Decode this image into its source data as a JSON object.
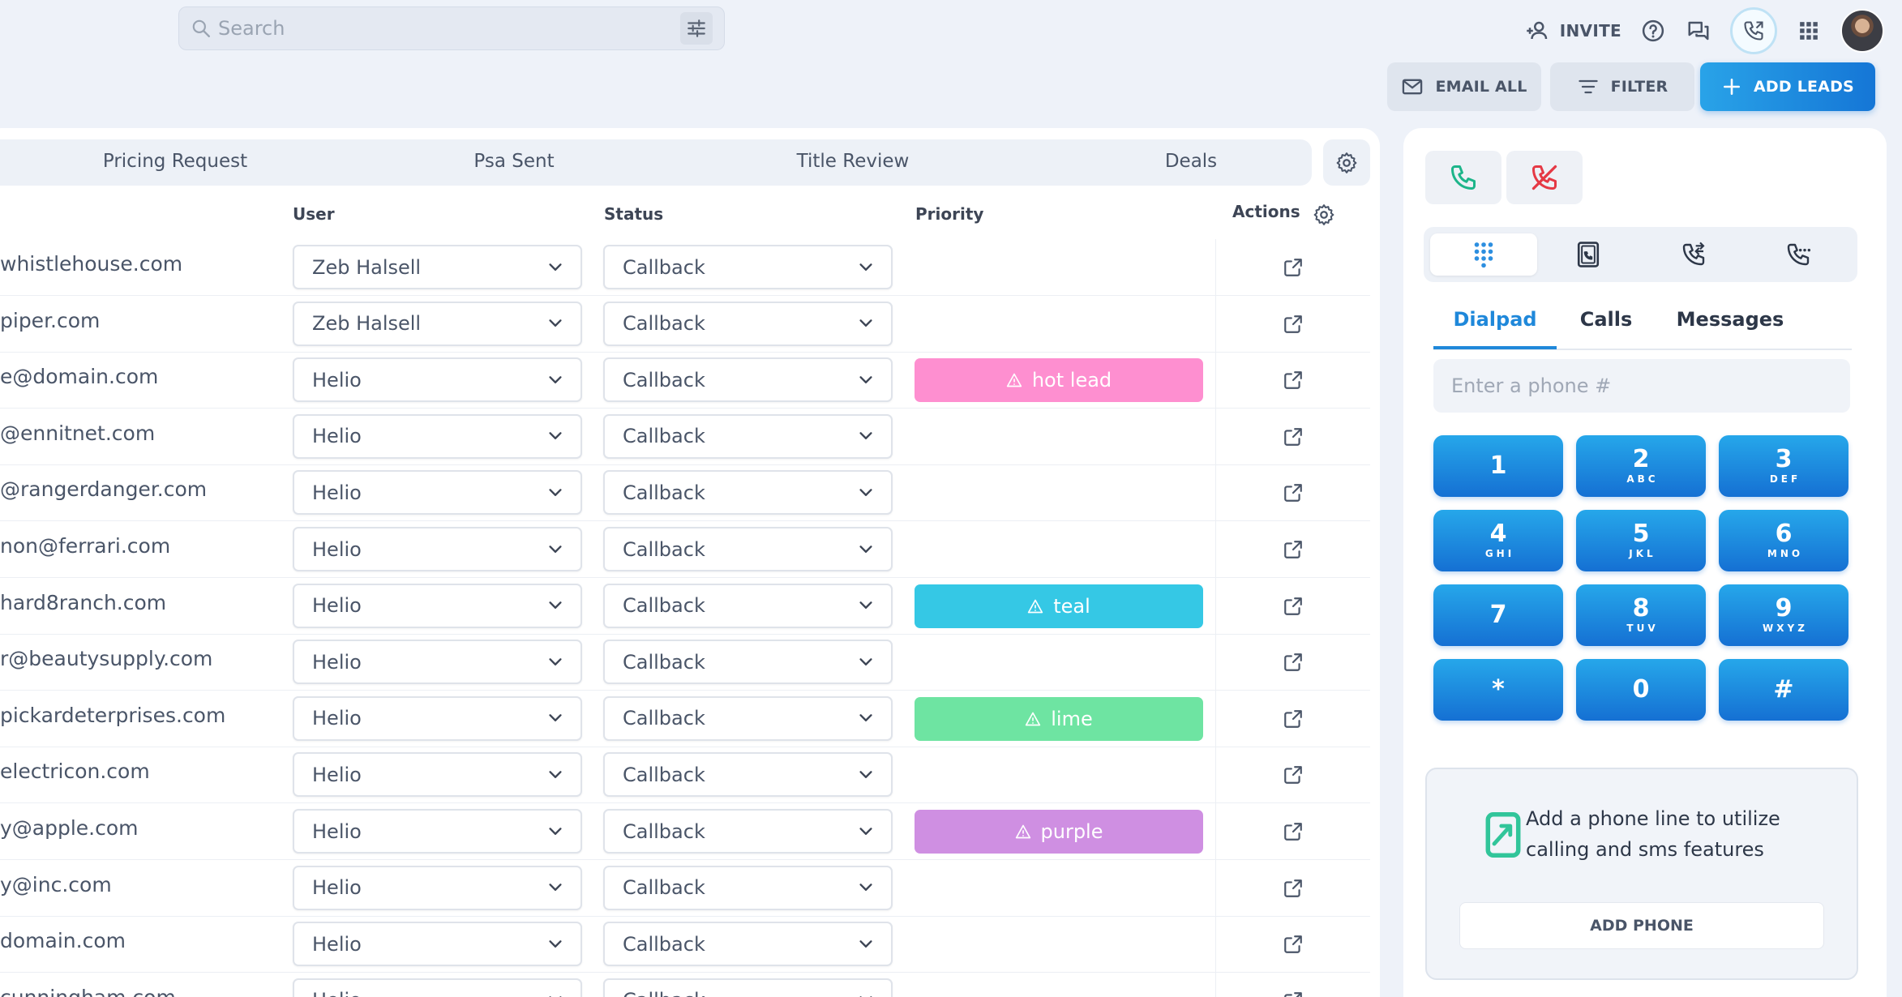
{
  "search": {
    "placeholder": "Search"
  },
  "header": {
    "invite_label": "INVITE"
  },
  "toolbar": {
    "email_all": "EMAIL ALL",
    "filter": "FILTER",
    "add_leads": "ADD LEADS"
  },
  "stages": [
    "Pricing Request",
    "Psa Sent",
    "Title Review",
    "Deals"
  ],
  "columns": {
    "user": "User",
    "status": "Status",
    "priority": "Priority",
    "actions": "Actions"
  },
  "rows": [
    {
      "email": "whistlehouse.com",
      "user": "Zeb Halsell",
      "status": "Callback",
      "priority": ""
    },
    {
      "email": "piper.com",
      "user": "Zeb Halsell",
      "status": "Callback",
      "priority": ""
    },
    {
      "email": "e@domain.com",
      "user": "Helio",
      "status": "Callback",
      "priority": "hot lead"
    },
    {
      "email": "@ennitnet.com",
      "user": "Helio",
      "status": "Callback",
      "priority": ""
    },
    {
      "email": "@rangerdanger.com",
      "user": "Helio",
      "status": "Callback",
      "priority": ""
    },
    {
      "email": "non@ferrari.com",
      "user": "Helio",
      "status": "Callback",
      "priority": ""
    },
    {
      "email": "hard8ranch.com",
      "user": "Helio",
      "status": "Callback",
      "priority": "teal"
    },
    {
      "email": "r@beautysupply.com",
      "user": "Helio",
      "status": "Callback",
      "priority": ""
    },
    {
      "email": "pickardeterprises.com",
      "user": "Helio",
      "status": "Callback",
      "priority": "lime"
    },
    {
      "email": "electricon.com",
      "user": "Helio",
      "status": "Callback",
      "priority": ""
    },
    {
      "email": "y@apple.com",
      "user": "Helio",
      "status": "Callback",
      "priority": "purple"
    },
    {
      "email": "y@inc.com",
      "user": "Helio",
      "status": "Callback",
      "priority": ""
    },
    {
      "email": "domain.com",
      "user": "Helio",
      "status": "Callback",
      "priority": ""
    },
    {
      "email": "cunningham.com",
      "user": "Helio",
      "status": "Callback",
      "priority": ""
    }
  ],
  "priority_colors": {
    "hot lead": "#fe8fd0",
    "teal": "#35c8e5",
    "lime": "#6ee4a2",
    "purple": "#cf8fe2"
  },
  "phone": {
    "tabs": [
      "Dialpad",
      "Calls",
      "Messages"
    ],
    "active_tab": "Dialpad",
    "input_placeholder": "Enter a phone #",
    "keys": [
      {
        "digit": "1",
        "letters": ""
      },
      {
        "digit": "2",
        "letters": "ABC"
      },
      {
        "digit": "3",
        "letters": "DEF"
      },
      {
        "digit": "4",
        "letters": "GHI"
      },
      {
        "digit": "5",
        "letters": "JKL"
      },
      {
        "digit": "6",
        "letters": "MNO"
      },
      {
        "digit": "7",
        "letters": ""
      },
      {
        "digit": "8",
        "letters": "TUV"
      },
      {
        "digit": "9",
        "letters": "WXYZ"
      },
      {
        "digit": "*",
        "letters": ""
      },
      {
        "digit": "0",
        "letters": ""
      },
      {
        "digit": "#",
        "letters": ""
      }
    ],
    "promo_text": "Add a phone line to utilize calling and sms features",
    "add_phone_label": "ADD PHONE"
  },
  "colors": {
    "accent": "#1f88da",
    "call_green": "#1db58a",
    "hangup_red": "#e53945"
  }
}
